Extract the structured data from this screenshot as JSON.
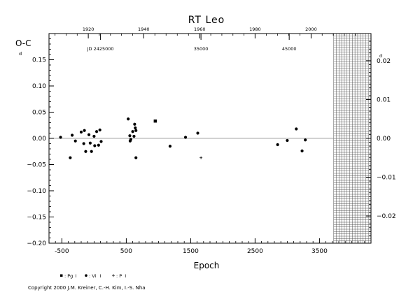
{
  "chart_data": {
    "type": "scatter",
    "title": "RT Leo",
    "xlabel": "Epoch",
    "ylabel": "O-C",
    "ylabel_sup": "d",
    "right_axis_sup": "d",
    "xlim": [
      -700,
      4300
    ],
    "ylim": [
      -0.2,
      0.2
    ],
    "x_ticks": [
      -500,
      500,
      1500,
      2500,
      3500
    ],
    "x_tick_labels": [
      "-500",
      "500",
      "1500",
      "2500",
      "3500"
    ],
    "y_ticks": [
      0.15,
      0.1,
      0.05,
      0.0,
      -0.05,
      -0.1,
      -0.15,
      -0.2
    ],
    "y_tick_labels": [
      "0.15",
      "0.10",
      "0.05",
      "0.00",
      "−0.05",
      "−0.10",
      "−0.15",
      "−0.20"
    ],
    "right_axis": {
      "ticks": [
        0.02,
        0.01,
        0.0,
        -0.01,
        -0.02
      ],
      "tick_labels": [
        "0.02",
        "0.01",
        "0.00",
        "−0.01",
        "−0.02"
      ],
      "scale_factor": 0.135
    },
    "top_axis": {
      "year_ticks": [
        {
          "label": "1920",
          "epoch": -90
        },
        {
          "label": "1940",
          "epoch": 770
        },
        {
          "label": "1960",
          "epoch": 1640
        },
        {
          "label": "1980",
          "epoch": 2500
        },
        {
          "label": "2000",
          "epoch": 3370
        }
      ],
      "jd_labels": [
        {
          "label": "JD 2425000",
          "epoch": 100
        },
        {
          "label": "35000",
          "epoch": 1660
        },
        {
          "label": "45000",
          "epoch": 3030
        }
      ]
    },
    "future_region": {
      "from_epoch": 3720
    },
    "series": [
      {
        "name": "Pg",
        "marker": "square",
        "points": [
          [
            950,
            0.033
          ]
        ]
      },
      {
        "name": "Vi",
        "marker": "circle",
        "points": [
          [
            -520,
            0.002
          ],
          [
            -370,
            -0.037
          ],
          [
            -340,
            0.006
          ],
          [
            -290,
            -0.005
          ],
          [
            -200,
            0.012
          ],
          [
            -160,
            -0.01
          ],
          [
            -150,
            0.015
          ],
          [
            -130,
            -0.025
          ],
          [
            -80,
            0.007
          ],
          [
            -60,
            -0.009
          ],
          [
            -40,
            -0.025
          ],
          [
            0,
            0.004
          ],
          [
            10,
            -0.014
          ],
          [
            40,
            0.013
          ],
          [
            70,
            -0.013
          ],
          [
            90,
            0.016
          ],
          [
            110,
            -0.006
          ],
          [
            530,
            0.037
          ],
          [
            555,
            0.005
          ],
          [
            560,
            -0.005
          ],
          [
            570,
            -0.002
          ],
          [
            600,
            0.013
          ],
          [
            620,
            0.004
          ],
          [
            630,
            0.027
          ],
          [
            640,
            0.02
          ],
          [
            650,
            0.015
          ],
          [
            650,
            -0.037
          ],
          [
            1180,
            -0.015
          ],
          [
            1420,
            0.002
          ],
          [
            1610,
            0.01
          ],
          [
            2850,
            -0.012
          ],
          [
            3000,
            -0.004
          ],
          [
            3140,
            0.018
          ],
          [
            3230,
            -0.024
          ],
          [
            3280,
            -0.003
          ]
        ]
      },
      {
        "name": "P",
        "marker": "plus",
        "points": [
          [
            1660,
            -0.037
          ]
        ]
      }
    ],
    "legend": {
      "placement": "bottom-left",
      "items": [
        {
          "marker": "square",
          "label": ": Pg",
          "suffix": "I"
        },
        {
          "marker": "circle",
          "label": ": Vi",
          "suffix": "I"
        },
        {
          "marker": "plus",
          "label": ": P",
          "suffix": "I"
        }
      ]
    }
  },
  "footer": {
    "copyright": "Copyright 2000 J.M. Kreiner, C.-H. Kim, I.-S. Nha"
  }
}
